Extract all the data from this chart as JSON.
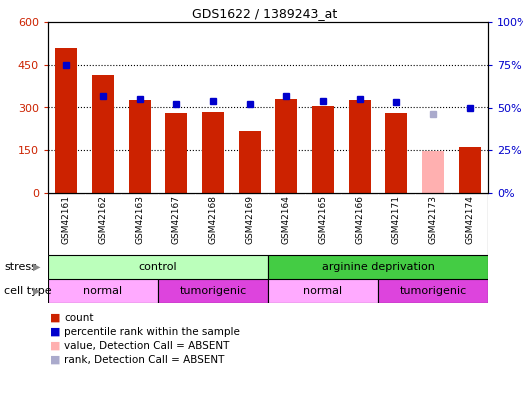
{
  "title": "GDS1622 / 1389243_at",
  "samples": [
    "GSM42161",
    "GSM42162",
    "GSM42163",
    "GSM42167",
    "GSM42168",
    "GSM42169",
    "GSM42164",
    "GSM42165",
    "GSM42166",
    "GSM42171",
    "GSM42173",
    "GSM42174"
  ],
  "counts": [
    510,
    415,
    325,
    280,
    285,
    218,
    330,
    305,
    325,
    280,
    148,
    160
  ],
  "ranks": [
    75,
    57,
    55,
    52,
    54,
    52,
    57,
    54,
    55,
    53,
    46,
    50
  ],
  "absent_count_idx": 10,
  "absent_rank_idx": 10,
  "ylim_left": [
    0,
    600
  ],
  "ylim_right": [
    0,
    100
  ],
  "yticks_left": [
    0,
    150,
    300,
    450,
    600
  ],
  "yticks_right": [
    0,
    25,
    50,
    75,
    100
  ],
  "ytick_labels_left": [
    "0",
    "150",
    "300",
    "450",
    "600"
  ],
  "ytick_labels_right": [
    "0%",
    "25%",
    "50%",
    "75%",
    "100%"
  ],
  "bar_color": "#cc2200",
  "absent_bar_color": "#ffb0b0",
  "rank_color": "#0000cc",
  "absent_rank_color": "#aaaacc",
  "bg_color": "#ffffff",
  "stress_control_color": "#bbffbb",
  "stress_arginine_color": "#44cc44",
  "cell_normal_color": "#ffaaff",
  "cell_tumorigenic_color": "#dd44dd",
  "stress_row_label": "stress",
  "cell_row_label": "cell type",
  "stress_groups": [
    {
      "label": "control",
      "start": 0,
      "end": 5
    },
    {
      "label": "arginine deprivation",
      "start": 6,
      "end": 11
    }
  ],
  "cell_groups": [
    {
      "label": "normal",
      "start": 0,
      "end": 2
    },
    {
      "label": "tumorigenic",
      "start": 3,
      "end": 5
    },
    {
      "label": "normal",
      "start": 6,
      "end": 8
    },
    {
      "label": "tumorigenic",
      "start": 9,
      "end": 11
    }
  ],
  "legend_items": [
    {
      "label": "count",
      "color": "#cc2200"
    },
    {
      "label": "percentile rank within the sample",
      "color": "#0000cc"
    },
    {
      "label": "value, Detection Call = ABSENT",
      "color": "#ffb0b0"
    },
    {
      "label": "rank, Detection Call = ABSENT",
      "color": "#aaaacc"
    }
  ]
}
